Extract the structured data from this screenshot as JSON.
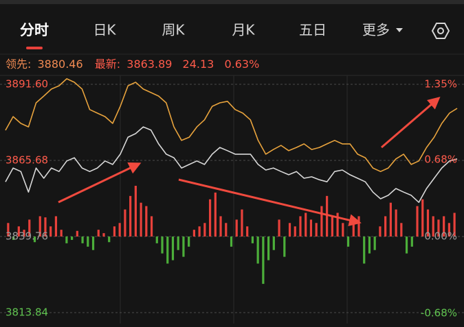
{
  "tabs": [
    "分时",
    "日K",
    "周K",
    "月K",
    "五日",
    "更多"
  ],
  "info": {
    "leading_label": "领先:",
    "leading": "3880.46",
    "latest_label": "最新:",
    "latest": "3863.89",
    "change": "24.13",
    "change_pct": "0.63%"
  },
  "chart_data": {
    "type": "line",
    "ylim": [
      3810.57,
      3894.17
    ],
    "yticks": [
      {
        "value": 3891.6,
        "label": "3891.60"
      },
      3865.68,
      3839.76,
      3813.84
    ],
    "y2lim": [
      -0.76,
      1.417
    ],
    "y2ticks": [
      {
        "value": 1.35,
        "label": "1.35%"
      },
      {
        "value": 0.68,
        "label": "0.68%"
      },
      {
        "value": 0.0,
        "label": "0.00%"
      },
      {
        "value": -0.68,
        "label": "-0.68%"
      }
    ],
    "tick_colors": {
      "up": "#ff5b4b",
      "flat": "#9a9a9a",
      "down": "#5fc24f"
    },
    "series": [
      {
        "color": "#e8a33d",
        "values": [
          3875.96,
          3880.6,
          3878.3,
          3877.1,
          3885.3,
          3887.6,
          3890.0,
          3891.1,
          3893.5,
          3892.3,
          3890.0,
          3883.0,
          3881.8,
          3880.6,
          3878.3,
          3884.1,
          3891.1,
          3892.3,
          3890.0,
          3888.8,
          3887.6,
          3885.3,
          3877.1,
          3872.5,
          3873.6,
          3877.1,
          3879.5,
          3884.1,
          3885.3,
          3885.8,
          3883.0,
          3881.8,
          3879.5,
          3872.5,
          3867.8,
          3869.4,
          3870.8,
          3869.0,
          3870.1,
          3871.3,
          3869.4,
          3870.1,
          3871.3,
          3872.5,
          3871.3,
          3871.3,
          3867.8,
          3866.6,
          3863.1,
          3861.9,
          3863.1,
          3866.2,
          3867.8,
          3864.3,
          3865.5,
          3870.1,
          3873.6,
          3878.3,
          3881.8,
          3883.4
        ]
      },
      {
        "color": "#d8d8d8",
        "values": [
          3858.4,
          3863.1,
          3861.9,
          3854.9,
          3863.1,
          3859.6,
          3863.1,
          3861.9,
          3865.5,
          3866.6,
          3863.1,
          3861.9,
          3863.1,
          3865.5,
          3864.3,
          3867.8,
          3873.6,
          3874.8,
          3877.1,
          3876.0,
          3871.3,
          3867.8,
          3866.6,
          3863.1,
          3864.3,
          3865.5,
          3864.3,
          3867.8,
          3870.1,
          3869.0,
          3867.8,
          3867.8,
          3867.8,
          3864.3,
          3862.4,
          3863.1,
          3861.9,
          3860.8,
          3861.9,
          3859.6,
          3860.1,
          3859.1,
          3858.4,
          3861.9,
          3862.4,
          3860.8,
          3859.6,
          3858.4,
          3854.9,
          3852.6,
          3853.8,
          3856.1,
          3854.9,
          3853.8,
          3851.4,
          3856.1,
          3859.6,
          3863.1,
          3865.5,
          3866.2
        ]
      },
      {
        "type": "bar",
        "axis": "y2",
        "color": "#e8413b",
        "negative_color": "#4caf3a",
        "values": [
          0.12,
          -0.03,
          0.09,
          0.06,
          0.15,
          -0.05,
          0.18,
          0.17,
          0.09,
          0.18,
          0.06,
          -0.06,
          -0.03,
          0.05,
          -0.06,
          -0.09,
          -0.12,
          0.06,
          0.03,
          -0.05,
          0.09,
          0.12,
          0.24,
          0.36,
          0.45,
          0.3,
          0.27,
          0.18,
          -0.06,
          -0.15,
          -0.24,
          -0.21,
          -0.12,
          -0.18,
          -0.09,
          0.06,
          0.09,
          0.12,
          0.33,
          0.39,
          0.18,
          0.12,
          -0.09,
          0.15,
          0.24,
          0.09,
          -0.06,
          -0.24,
          -0.42,
          -0.21,
          -0.12,
          0.15,
          -0.18,
          0.12,
          0.09,
          0.18,
          0.21,
          0.15,
          0.12,
          0.27,
          0.36,
          0.18,
          0.21,
          0.12,
          -0.09,
          0.15,
          0.18,
          -0.24,
          -0.15,
          -0.12,
          0.09,
          0.18,
          0.3,
          0.24,
          0.12,
          -0.15,
          -0.09,
          0.27,
          0.33,
          0.24,
          0.18,
          0.15,
          0.18,
          0.12,
          0.21
        ]
      }
    ],
    "grid": true
  }
}
